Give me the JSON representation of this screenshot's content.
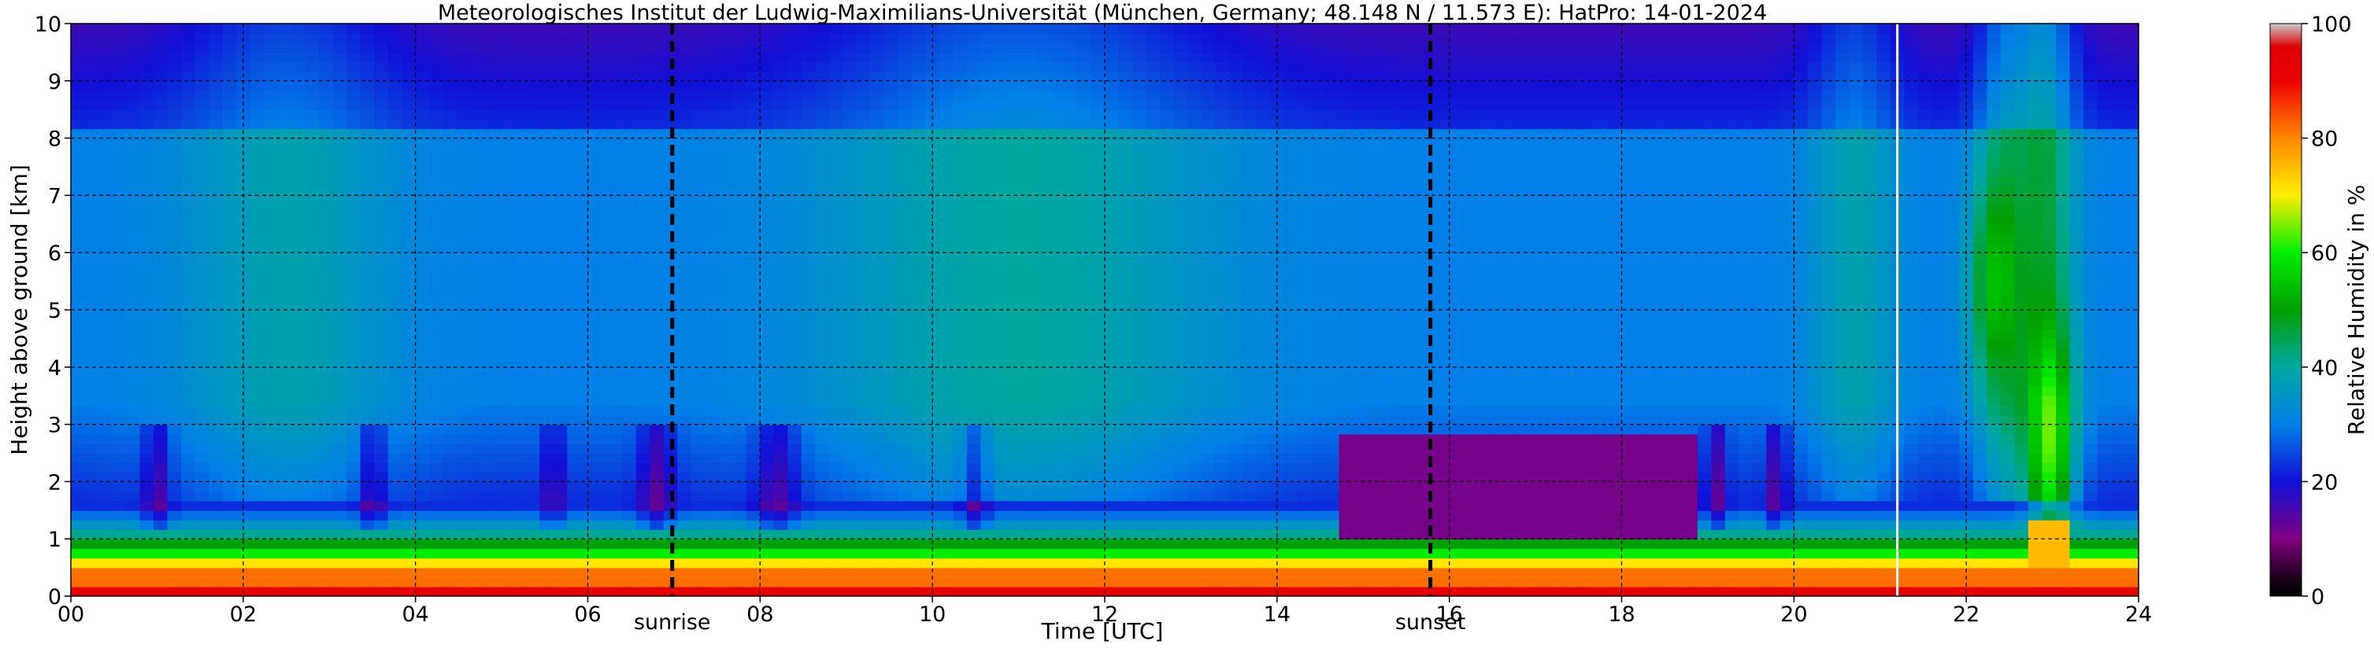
{
  "chart_data": {
    "type": "heatmap",
    "title": "Meteorologisches Institut der Ludwig-Maximilians-Universität (München, Germany; 48.148 N / 11.573 E):    HatPro: 14-01-2024",
    "xlabel": "Time [UTC]",
    "ylabel": "Height above ground [km]",
    "colorbar_label": "Relative Humidity in %",
    "xlim": [
      0,
      24
    ],
    "ylim": [
      0,
      10
    ],
    "clim": [
      0,
      100
    ],
    "x_ticks": [
      0,
      2,
      4,
      6,
      8,
      10,
      12,
      14,
      16,
      18,
      20,
      22,
      24
    ],
    "x_tick_labels": [
      "00",
      "02",
      "04",
      "06",
      "08",
      "10",
      "12",
      "14",
      "16",
      "18",
      "20",
      "22",
      "24"
    ],
    "y_ticks": [
      0,
      1,
      2,
      3,
      4,
      5,
      6,
      7,
      8,
      9,
      10
    ],
    "y_tick_labels": [
      "0",
      "1",
      "2",
      "3",
      "4",
      "5",
      "6",
      "7",
      "8",
      "9",
      "10"
    ],
    "colorbar_ticks": [
      0,
      20,
      40,
      60,
      80,
      100
    ],
    "colorbar_tick_labels": [
      "0",
      "20",
      "40",
      "60",
      "80",
      "100"
    ],
    "grid": true,
    "events": [
      {
        "label": "sunrise",
        "time": 6.98
      },
      {
        "label": "sunset",
        "time": 15.78
      }
    ],
    "data_gap_time": 21.2,
    "colormap": [
      {
        "v": 0,
        "color": "#000000"
      },
      {
        "v": 3,
        "color": "#1a001a"
      },
      {
        "v": 10,
        "color": "#800080"
      },
      {
        "v": 20,
        "color": "#1010d8"
      },
      {
        "v": 30,
        "color": "#0080e8"
      },
      {
        "v": 40,
        "color": "#00a8a0"
      },
      {
        "v": 50,
        "color": "#00a000"
      },
      {
        "v": 60,
        "color": "#00ee00"
      },
      {
        "v": 70,
        "color": "#ffee00"
      },
      {
        "v": 80,
        "color": "#ff8800"
      },
      {
        "v": 90,
        "color": "#ee0000"
      },
      {
        "v": 96,
        "color": "#dd0000"
      },
      {
        "v": 100,
        "color": "#cccccc"
      }
    ]
  }
}
